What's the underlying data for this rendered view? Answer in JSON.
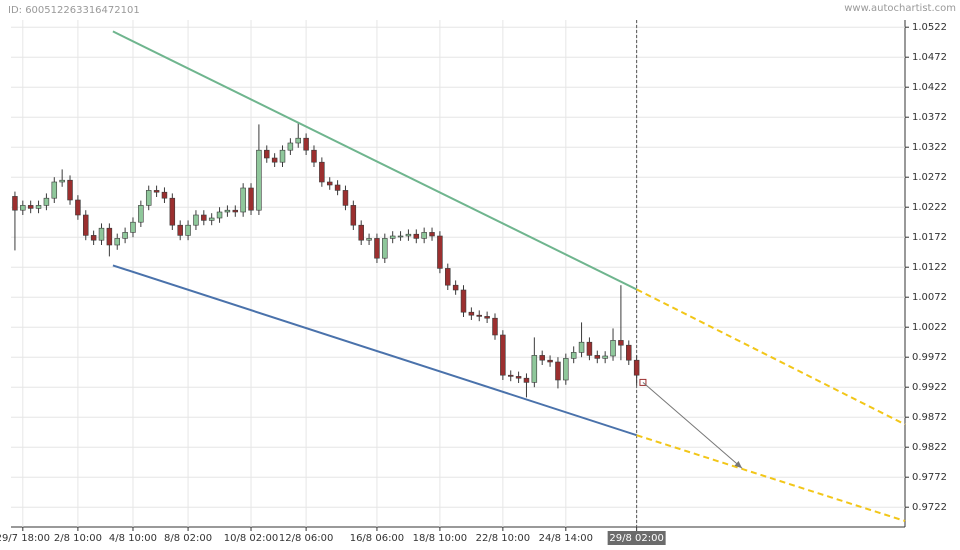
{
  "header": {
    "id": "ID: 600512263316472101",
    "brand": "www.autochartist.com"
  },
  "chart_data": {
    "type": "candlestick",
    "categories": [
      null,
      "29/7 18:00",
      null,
      null,
      null,
      null,
      null,
      null,
      "2/8 10:00",
      null,
      null,
      null,
      null,
      null,
      null,
      "4/8 10:00",
      null,
      null,
      null,
      null,
      null,
      null,
      "8/8 02:00",
      null,
      null,
      null,
      null,
      null,
      null,
      null,
      "10/8 02:00",
      null,
      null,
      null,
      null,
      null,
      null,
      "12/8 06:00",
      null,
      null,
      null,
      null,
      null,
      null,
      null,
      null,
      "16/8 06:00",
      null,
      null,
      null,
      null,
      null,
      null,
      null,
      "18/8 10:00",
      null,
      null,
      null,
      null,
      null,
      null,
      null,
      "22/8 10:00",
      null,
      null,
      null,
      null,
      null,
      null,
      null,
      "24/8 14:00",
      null,
      null,
      null,
      null,
      null,
      null,
      null,
      null,
      "29/8 02:00"
    ],
    "open": [
      1.024,
      1.0217,
      1.0225,
      1.022,
      1.0225,
      1.0237,
      1.0264,
      1.0267,
      1.0234,
      1.0209,
      1.0175,
      1.0167,
      1.0187,
      1.0159,
      1.017,
      1.018,
      1.0197,
      1.0225,
      1.025,
      1.0247,
      1.0237,
      1.0192,
      1.0175,
      1.0192,
      1.0209,
      1.02,
      1.0204,
      1.0214,
      1.0217,
      1.0214,
      1.0254,
      1.0217,
      1.0317,
      1.0304,
      1.0297,
      1.0317,
      1.0329,
      1.0337,
      1.0317,
      1.0297,
      1.0264,
      1.0259,
      1.025,
      1.0225,
      1.0192,
      1.0167,
      1.017,
      1.0137,
      1.017,
      1.0174,
      1.0174,
      1.0177,
      1.017,
      1.018,
      1.0174,
      1.012,
      1.0092,
      1.0084,
      1.0047,
      1.0042,
      1.004,
      1.0037,
      1.0009,
      0.9942,
      0.994,
      0.9937,
      0.993,
      0.9975,
      0.9967,
      0.9964,
      0.9934,
      0.997,
      0.998,
      0.9997,
      0.9975,
      0.997,
      0.9974,
      1.0,
      0.9992,
      0.9967
    ],
    "high": [
      1.0248,
      1.0233,
      1.0233,
      1.0233,
      1.0245,
      1.0272,
      1.0285,
      1.0275,
      1.0242,
      1.0217,
      1.0183,
      1.0195,
      1.0195,
      1.0178,
      1.0188,
      1.0205,
      1.0233,
      1.0258,
      1.0258,
      1.0255,
      1.0245,
      1.02,
      1.02,
      1.0217,
      1.0217,
      1.0212,
      1.0222,
      1.0225,
      1.0225,
      1.0262,
      1.0262,
      1.036,
      1.0325,
      1.0312,
      1.0325,
      1.0337,
      1.0362,
      1.0345,
      1.0325,
      1.0305,
      1.0272,
      1.0267,
      1.0258,
      1.0233,
      1.02,
      1.0178,
      1.0178,
      1.0178,
      1.0182,
      1.0182,
      1.0185,
      1.0185,
      1.0188,
      1.0188,
      1.0182,
      1.0128,
      1.01,
      1.0092,
      1.0055,
      1.005,
      1.0048,
      1.0045,
      1.0017,
      0.995,
      0.9948,
      0.9945,
      1.0005,
      0.9983,
      0.9975,
      0.9972,
      0.9978,
      0.999,
      1.003,
      1.0005,
      0.9983,
      0.9982,
      1.002,
      1.0092,
      1.0,
      0.9975
    ],
    "low": [
      1.015,
      1.0209,
      1.0212,
      1.0212,
      1.0217,
      1.0229,
      1.0256,
      1.0226,
      1.0201,
      1.0167,
      1.0159,
      1.0159,
      1.014,
      1.0151,
      1.0162,
      1.0172,
      1.0189,
      1.0217,
      1.0239,
      1.0229,
      1.0184,
      1.0167,
      1.0167,
      1.0184,
      1.0192,
      1.0192,
      1.0196,
      1.0206,
      1.0206,
      1.0206,
      1.0209,
      1.0209,
      1.0296,
      1.0289,
      1.0289,
      1.0309,
      1.0321,
      1.0309,
      1.0289,
      1.0256,
      1.0251,
      1.0242,
      1.0217,
      1.0184,
      1.0159,
      1.0159,
      1.0129,
      1.0129,
      1.0162,
      1.0166,
      1.0166,
      1.0162,
      1.0162,
      1.0166,
      1.0112,
      1.0084,
      1.0076,
      1.0039,
      1.0034,
      1.0032,
      1.0029,
      1.0001,
      0.9934,
      0.9932,
      0.9929,
      0.9905,
      0.9922,
      0.9959,
      0.9956,
      0.992,
      0.9926,
      0.9962,
      0.9972,
      0.9967,
      0.9962,
      0.9962,
      0.9966,
      0.9967,
      0.9959,
      0.9925
    ],
    "close": [
      1.0217,
      1.0225,
      1.022,
      1.0225,
      1.0237,
      1.0264,
      1.0267,
      1.0234,
      1.0209,
      1.0175,
      1.0167,
      1.0187,
      1.0159,
      1.017,
      1.018,
      1.0197,
      1.0225,
      1.025,
      1.0247,
      1.0237,
      1.0192,
      1.0175,
      1.0192,
      1.0209,
      1.02,
      1.0204,
      1.0214,
      1.0217,
      1.0214,
      1.0254,
      1.0217,
      1.0317,
      1.0304,
      1.0297,
      1.0317,
      1.0329,
      1.0337,
      1.0317,
      1.0297,
      1.0264,
      1.0259,
      1.025,
      1.0225,
      1.0192,
      1.0167,
      1.017,
      1.0137,
      1.017,
      1.0174,
      1.0174,
      1.0177,
      1.017,
      1.018,
      1.0174,
      1.012,
      1.0092,
      1.0084,
      1.0047,
      1.0042,
      1.004,
      1.0037,
      1.0009,
      0.9942,
      0.994,
      0.9937,
      0.993,
      0.9975,
      0.9967,
      0.9964,
      0.9934,
      0.997,
      0.998,
      0.9997,
      0.9975,
      0.997,
      0.9974,
      1.0,
      0.9992,
      0.9967,
      0.9942
    ],
    "up_color": "#8fc79b",
    "down_color": "#9b2f2f",
    "outline_color": "#3a3a3a",
    "xlim": [
      -0.5,
      113.1
    ],
    "ylim": [
      0.9689,
      1.0534
    ],
    "yticks": [
      0.9722,
      0.9772,
      0.9822,
      0.9872,
      0.9922,
      0.9972,
      1.0022,
      1.0072,
      1.0122,
      1.0172,
      1.0222,
      1.0272,
      1.0322,
      1.0372,
      1.0422,
      1.0472,
      1.0522
    ],
    "grid": true,
    "trendlines": [
      {
        "color": "#6fb58e",
        "dashed": false,
        "x": [
          12.45,
          79
        ],
        "y": [
          1.0515,
          1.0085
        ]
      },
      {
        "color": "#f2c618",
        "dashed": true,
        "x": [
          79,
          113.1
        ],
        "y": [
          1.0085,
          0.986
        ]
      },
      {
        "color": "#4a72ab",
        "dashed": false,
        "x": [
          12.45,
          79
        ],
        "y": [
          1.0125,
          0.9842
        ]
      },
      {
        "color": "#f2c618",
        "dashed": true,
        "x": [
          79,
          113.1
        ],
        "y": [
          0.9842,
          0.9699
        ]
      }
    ],
    "arrow": {
      "color": "#777777",
      "x": [
        79.8,
        92.4
      ],
      "y": [
        0.993,
        0.9787
      ]
    }
  }
}
